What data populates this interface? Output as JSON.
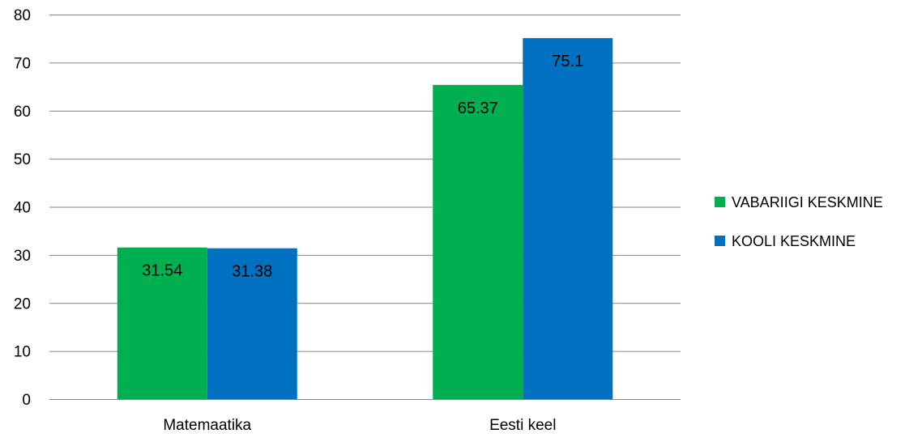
{
  "chart_data": {
    "type": "bar",
    "categories": [
      "Matemaatika",
      "Eesti keel"
    ],
    "series": [
      {
        "name": "VABARIIGI KESKMINE",
        "values": [
          31.54,
          65.37
        ],
        "color": "#00B050"
      },
      {
        "name": "KOOLI KESKMINE",
        "values": [
          31.38,
          75.1
        ],
        "color": "#0070C0"
      }
    ],
    "title": "",
    "xlabel": "",
    "ylabel": "",
    "ylim": [
      0,
      80
    ],
    "yticks": [
      "0",
      "10",
      "20",
      "30",
      "40",
      "50",
      "60",
      "70",
      "80"
    ],
    "data_labels": [
      [
        "31.54",
        "65.37"
      ],
      [
        "31.38",
        "75.1"
      ]
    ],
    "grid": true,
    "legend": "right",
    "colors": {
      "grid": "#868686",
      "axis": "#868686",
      "text": "#000000"
    }
  }
}
